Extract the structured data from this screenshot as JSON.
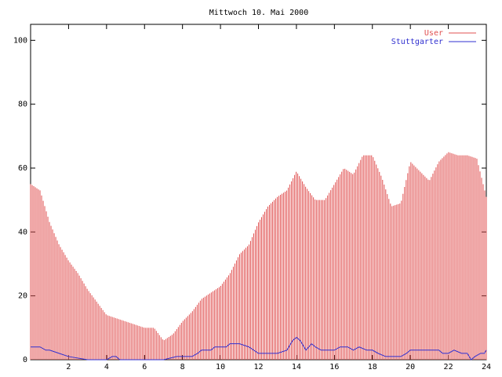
{
  "chart_data": {
    "type": "bar",
    "title": "Mittwoch 10. Mai 2000",
    "xlabel": "",
    "ylabel": "",
    "xlim": [
      0,
      24
    ],
    "ylim": [
      0,
      105
    ],
    "x_ticks": [
      2,
      4,
      6,
      8,
      10,
      12,
      14,
      16,
      18,
      20,
      22,
      24
    ],
    "y_ticks": [
      0,
      20,
      40,
      60,
      80,
      100
    ],
    "grid": false,
    "legend_position": "top-right",
    "series": [
      {
        "name": "User",
        "color": "#e05050",
        "style": "impulses",
        "x": [
          0,
          0.5,
          1,
          1.5,
          2,
          2.5,
          3,
          3.5,
          4,
          4.5,
          5,
          5.5,
          6,
          6.5,
          7,
          7.5,
          8,
          8.5,
          9,
          9.5,
          10,
          10.5,
          11,
          11.5,
          12,
          12.5,
          13,
          13.5,
          14,
          14.5,
          15,
          15.5,
          16,
          16.5,
          17,
          17.5,
          18,
          18.5,
          19,
          19.5,
          20,
          20.5,
          21,
          21.5,
          22,
          22.5,
          23,
          23.5,
          24
        ],
        "values": [
          55,
          53,
          43,
          36,
          31,
          27,
          22,
          18,
          14,
          13,
          12,
          11,
          10,
          10,
          6,
          8,
          12,
          15,
          19,
          21,
          23,
          27,
          33,
          36,
          43,
          48,
          51,
          53,
          59,
          54,
          50,
          50,
          55,
          60,
          58,
          64,
          64,
          57,
          48,
          49,
          62,
          59,
          56,
          62,
          65,
          64,
          64,
          63,
          51
        ]
      },
      {
        "name": "Stuttgarter",
        "color": "#3030d0",
        "style": "line",
        "x": [
          0,
          0.5,
          0.8,
          1,
          1.5,
          2,
          3,
          4,
          4.3,
          4.5,
          4.7,
          5,
          7,
          7.7,
          8,
          8.5,
          8.8,
          9,
          9.5,
          9.7,
          10,
          10.3,
          10.5,
          11,
          11.5,
          12,
          12.5,
          13,
          13.5,
          13.8,
          14,
          14.2,
          14.5,
          14.8,
          15,
          15.3,
          15.7,
          16,
          16.3,
          16.7,
          17,
          17.3,
          17.7,
          18,
          18.3,
          18.7,
          19,
          19.5,
          19.8,
          20,
          20.5,
          21,
          21.5,
          21.7,
          22,
          22.3,
          22.7,
          23,
          23.2,
          23.4,
          23.7,
          23.9,
          24
        ],
        "values": [
          4,
          4,
          3,
          3,
          2,
          1,
          0,
          0,
          1,
          1,
          0,
          0,
          0,
          1,
          1,
          1,
          2,
          3,
          3,
          4,
          4,
          4,
          5,
          5,
          4,
          2,
          2,
          2,
          3,
          6,
          7,
          6,
          3,
          5,
          4,
          3,
          3,
          3,
          4,
          4,
          3,
          4,
          3,
          3,
          2,
          1,
          1,
          1,
          2,
          3,
          3,
          3,
          3,
          2,
          2,
          3,
          2,
          2,
          0,
          1,
          2,
          2,
          3
        ]
      }
    ]
  }
}
